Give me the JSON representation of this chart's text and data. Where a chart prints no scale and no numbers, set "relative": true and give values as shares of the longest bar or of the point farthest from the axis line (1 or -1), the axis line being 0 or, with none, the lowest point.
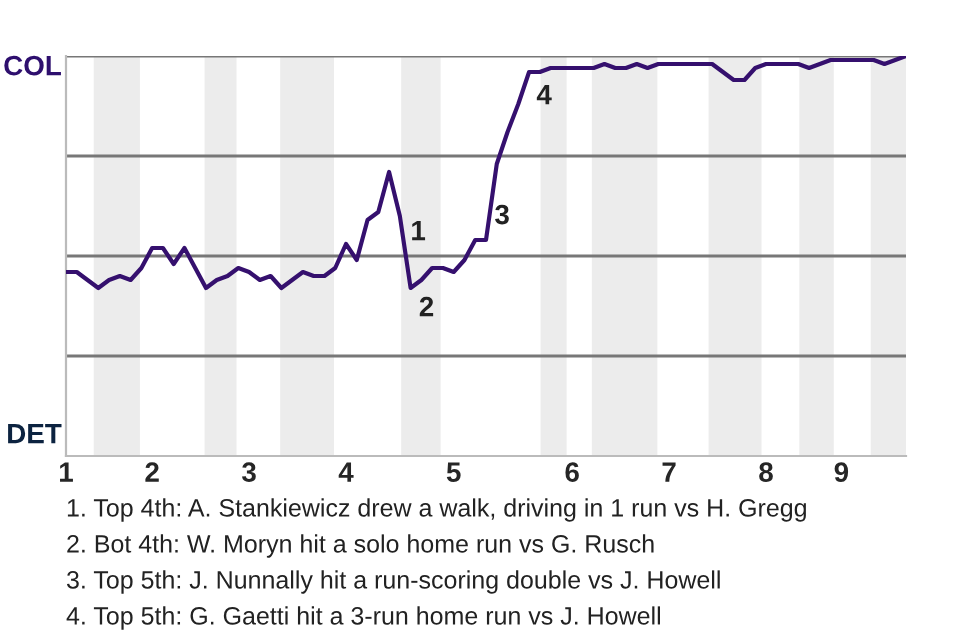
{
  "chart_data": {
    "type": "line",
    "relative": true,
    "categories": [
      "1",
      null,
      null,
      null,
      null,
      null,
      null,
      null,
      "2",
      null,
      null,
      null,
      null,
      null,
      null,
      null,
      null,
      "3",
      null,
      null,
      null,
      null,
      null,
      null,
      null,
      null,
      "4",
      null,
      null,
      null,
      null,
      null,
      null,
      null,
      null,
      null,
      "5",
      null,
      null,
      null,
      null,
      null,
      null,
      null,
      null,
      null,
      null,
      "6",
      null,
      null,
      null,
      null,
      null,
      null,
      null,
      null,
      "7",
      null,
      null,
      null,
      null,
      null,
      null,
      null,
      null,
      "8",
      null,
      null,
      null,
      null,
      null,
      null,
      "9",
      null,
      null,
      null,
      null,
      null,
      null
    ],
    "series": [
      {
        "color": "#35106e",
        "values": [
          0.46,
          0.46,
          0.44,
          0.42,
          0.44,
          0.45,
          0.44,
          0.47,
          0.52,
          0.52,
          0.48,
          0.52,
          0.47,
          0.42,
          0.44,
          0.45,
          0.47,
          0.46,
          0.44,
          0.45,
          0.42,
          0.44,
          0.46,
          0.45,
          0.45,
          0.47,
          0.53,
          0.49,
          0.59,
          0.61,
          0.71,
          0.6,
          0.42,
          0.44,
          0.47,
          0.47,
          0.46,
          0.49,
          0.54,
          0.54,
          0.73,
          0.81,
          0.88,
          0.96,
          0.96,
          0.97,
          0.97,
          0.97,
          0.97,
          0.97,
          0.98,
          0.97,
          0.97,
          0.98,
          0.97,
          0.98,
          0.98,
          0.98,
          0.98,
          0.98,
          0.98,
          0.96,
          0.94,
          0.94,
          0.97,
          0.98,
          0.98,
          0.98,
          0.98,
          0.97,
          0.98,
          0.99,
          0.99,
          0.99,
          0.99,
          0.99,
          0.98,
          0.99,
          1.0
        ]
      }
    ],
    "ref_lines": [
      {
        "axis": "y",
        "value": 0.25,
        "color": "#777777"
      },
      {
        "axis": "y",
        "value": 0.5,
        "color": "#777777"
      },
      {
        "axis": "y",
        "value": 0.75,
        "color": "#777777"
      },
      {
        "axis": "y",
        "value": 1.0,
        "color": "#777777"
      }
    ],
    "legend": false,
    "annotations": [
      "COL",
      "DET",
      "1",
      "2",
      "3",
      "4",
      "1. Top 4th: A. Stankiewicz drew a walk, driving in 1 run vs H. Gregg",
      "2. Bot 4th: W. Moryn hit a solo home run vs G. Rusch",
      "3. Top 5th: J. Nunnally hit a run-scoring double vs J. Howell",
      "4. Top 5th: G. Gaetti hit a 3-run home run vs J. Howell"
    ]
  }
}
